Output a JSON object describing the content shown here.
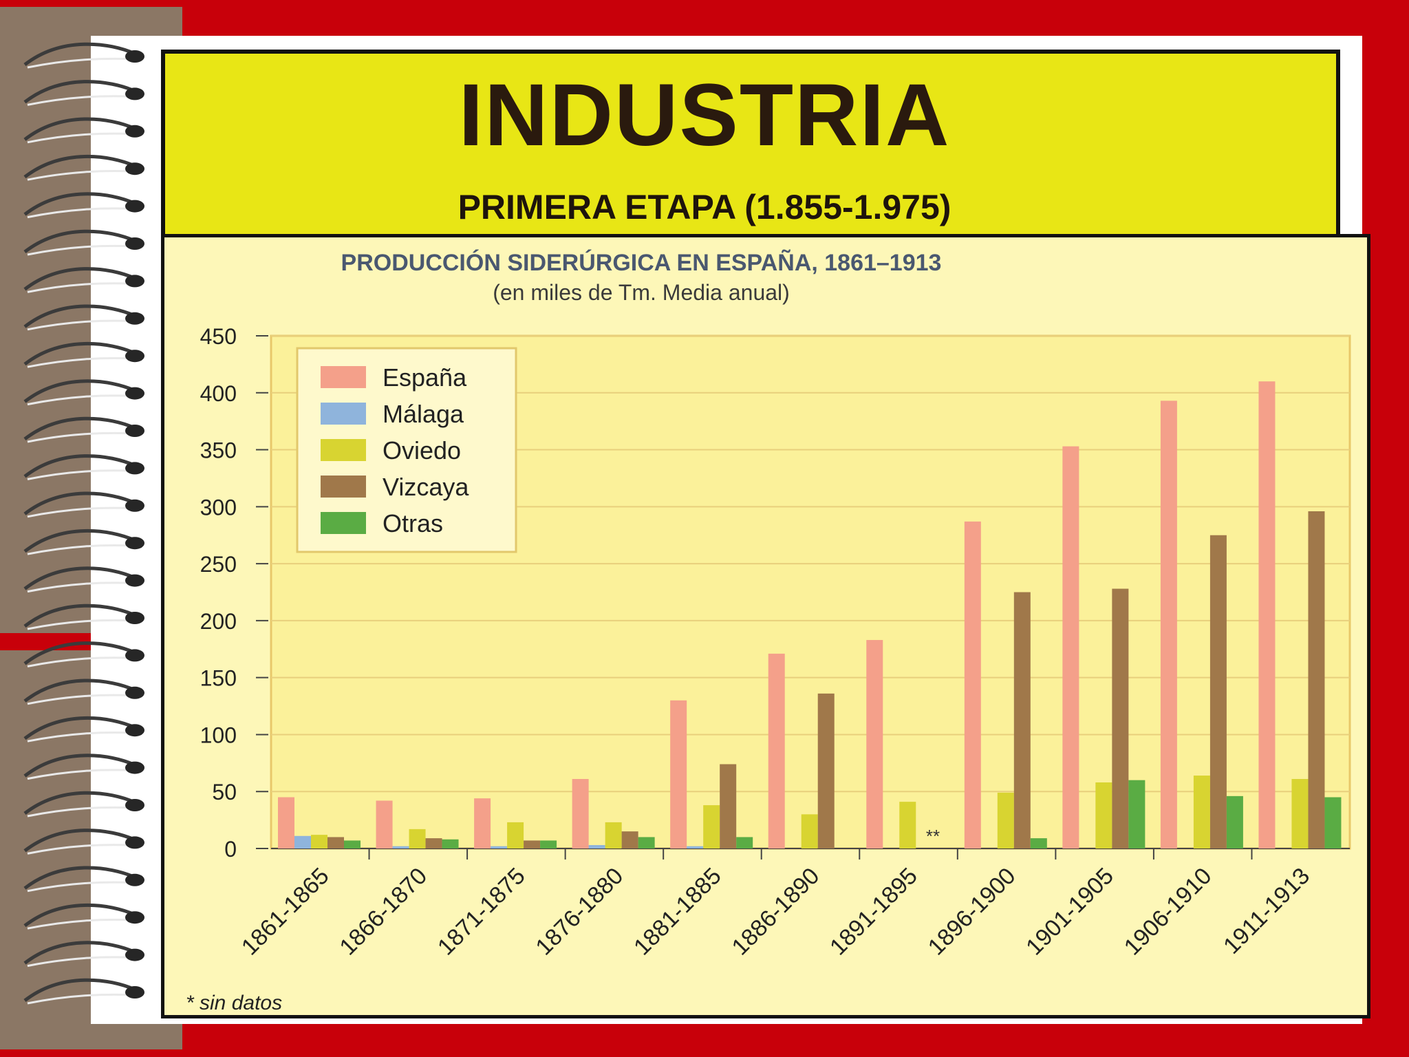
{
  "slide": {
    "title": "INDUSTRIA",
    "subtitle": "PRIMERA ETAPA (1.855-1.975)"
  },
  "colors": {
    "background": "#c8000a",
    "title_box": "#e8e615",
    "chart_background": "#fdf7b8"
  },
  "chart_data": {
    "type": "bar",
    "title": "PRODUCCIÓN SIDERÚRGICA EN ESPAÑA, 1861–1913",
    "subtitle": "(en miles de Tm. Media anual)",
    "categories": [
      "1861-1865",
      "1866-1870",
      "1871-1875",
      "1876-1880",
      "1881-1885",
      "1886-1890",
      "1891-1895",
      "1896-1900",
      "1901-1905",
      "1906-1910",
      "1911-1913"
    ],
    "ylim": [
      0,
      450
    ],
    "yticks": [
      0,
      50,
      100,
      150,
      200,
      250,
      300,
      350,
      400,
      450
    ],
    "grid": true,
    "legend_position": "top-left",
    "series": [
      {
        "name": "España",
        "color": "#f4a08a",
        "values": [
          45,
          42,
          44,
          61,
          130,
          171,
          183,
          287,
          353,
          393,
          410
        ]
      },
      {
        "name": "Málaga",
        "color": "#8fb4dc",
        "values": [
          11,
          2,
          2,
          3,
          2,
          0,
          0,
          0,
          0,
          0,
          0
        ]
      },
      {
        "name": "Oviedo",
        "color": "#d8d431",
        "values": [
          12,
          17,
          23,
          23,
          38,
          30,
          41,
          49,
          58,
          64,
          61
        ]
      },
      {
        "name": "Vizcaya",
        "color": "#a0784a",
        "values": [
          10,
          9,
          7,
          15,
          74,
          136,
          0,
          225,
          228,
          275,
          296
        ]
      },
      {
        "name": "Otras",
        "color": "#5aac44",
        "values": [
          7,
          8,
          7,
          10,
          10,
          0,
          0,
          9,
          60,
          46,
          45
        ]
      }
    ],
    "annotations": [
      {
        "category": "1891-1895",
        "text": "**"
      }
    ],
    "footnote": "* sin datos"
  }
}
